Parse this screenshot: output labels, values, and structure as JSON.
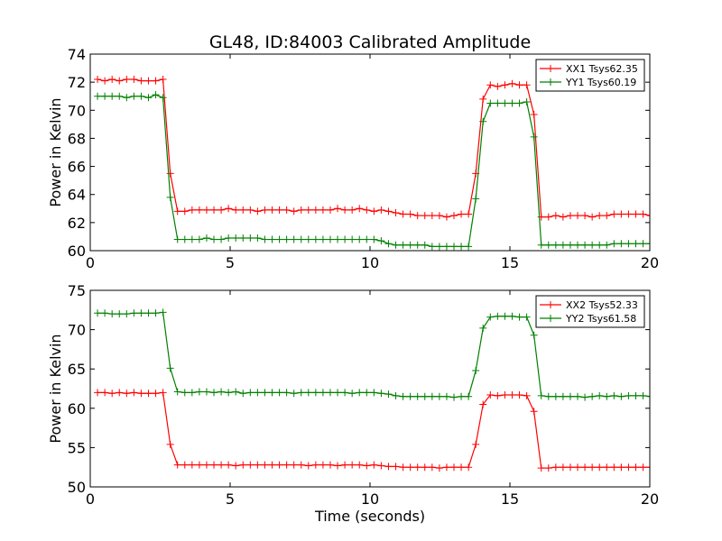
{
  "chart_data": [
    {
      "type": "line",
      "title": "GL48, ID:84003 Calibrated Amplitude",
      "xlabel": "",
      "ylabel": "Power in Kelvin",
      "xlim": [
        0,
        20
      ],
      "ylim": [
        60,
        74
      ],
      "xticks": [
        0,
        5,
        10,
        15,
        20
      ],
      "yticks": [
        60,
        62,
        64,
        66,
        68,
        70,
        72,
        74
      ],
      "xtick_labels": [
        "0",
        "5",
        "10",
        "15",
        "20"
      ],
      "ytick_labels": [
        "60",
        "62",
        "64",
        "66",
        "68",
        "70",
        "72",
        "74"
      ],
      "grid": false,
      "legend_position": "top-right",
      "x": [
        0.26,
        0.52,
        0.78,
        1.04,
        1.3,
        1.56,
        1.82,
        2.08,
        2.34,
        2.6,
        2.86,
        3.12,
        3.38,
        3.64,
        3.9,
        4.16,
        4.42,
        4.68,
        4.94,
        5.2,
        5.46,
        5.72,
        5.98,
        6.24,
        6.5,
        6.76,
        7.02,
        7.28,
        7.54,
        7.8,
        8.06,
        8.32,
        8.58,
        8.84,
        9.1,
        9.36,
        9.62,
        9.88,
        10.14,
        10.4,
        10.66,
        10.92,
        11.18,
        11.44,
        11.7,
        11.96,
        12.22,
        12.48,
        12.74,
        13.0,
        13.26,
        13.52,
        13.78,
        14.04,
        14.3,
        14.56,
        14.82,
        15.08,
        15.34,
        15.6,
        15.86,
        16.12,
        16.38,
        16.64,
        16.9,
        17.16,
        17.42,
        17.68,
        17.94,
        18.2,
        18.46,
        18.72,
        18.98,
        19.24,
        19.5,
        19.76,
        20.02
      ],
      "series": [
        {
          "name": "XX1 Tsys62.35",
          "color": "#ff0000",
          "values": [
            72.2,
            72.1,
            72.2,
            72.1,
            72.2,
            72.2,
            72.1,
            72.1,
            72.1,
            72.2,
            65.5,
            62.8,
            62.8,
            62.9,
            62.9,
            62.9,
            62.9,
            62.9,
            63.0,
            62.9,
            62.9,
            62.9,
            62.8,
            62.9,
            62.9,
            62.9,
            62.9,
            62.8,
            62.9,
            62.9,
            62.9,
            62.9,
            62.9,
            63.0,
            62.9,
            62.9,
            63.0,
            62.9,
            62.8,
            62.9,
            62.8,
            62.7,
            62.6,
            62.6,
            62.5,
            62.5,
            62.5,
            62.5,
            62.4,
            62.5,
            62.6,
            62.6,
            65.5,
            70.8,
            71.8,
            71.7,
            71.8,
            71.9,
            71.8,
            71.8,
            69.7,
            62.4,
            62.4,
            62.5,
            62.4,
            62.5,
            62.5,
            62.5,
            62.4,
            62.5,
            62.5,
            62.6,
            62.6,
            62.6,
            62.6,
            62.6,
            62.5
          ]
        },
        {
          "name": "YY1 Tsys60.19",
          "color": "#008000",
          "values": [
            71.0,
            71.0,
            71.0,
            71.0,
            70.9,
            71.0,
            71.0,
            70.9,
            71.1,
            70.9,
            63.8,
            60.8,
            60.8,
            60.8,
            60.8,
            60.9,
            60.8,
            60.8,
            60.9,
            60.9,
            60.9,
            60.9,
            60.9,
            60.8,
            60.8,
            60.8,
            60.8,
            60.8,
            60.8,
            60.8,
            60.8,
            60.8,
            60.8,
            60.8,
            60.8,
            60.8,
            60.8,
            60.8,
            60.8,
            60.7,
            60.5,
            60.4,
            60.4,
            60.4,
            60.4,
            60.4,
            60.3,
            60.3,
            60.3,
            60.3,
            60.3,
            60.3,
            63.7,
            69.2,
            70.5,
            70.5,
            70.5,
            70.5,
            70.5,
            70.6,
            68.1,
            60.4,
            60.4,
            60.4,
            60.4,
            60.4,
            60.4,
            60.4,
            60.4,
            60.4,
            60.4,
            60.5,
            60.5,
            60.5,
            60.5,
            60.5,
            60.5
          ]
        }
      ]
    },
    {
      "type": "line",
      "title": "",
      "xlabel": "Time (seconds)",
      "ylabel": "Power in Kelvin",
      "xlim": [
        0,
        20
      ],
      "ylim": [
        50,
        75
      ],
      "xticks": [
        0,
        5,
        10,
        15,
        20
      ],
      "yticks": [
        50,
        55,
        60,
        65,
        70,
        75
      ],
      "xtick_labels": [
        "0",
        "5",
        "10",
        "15",
        "20"
      ],
      "ytick_labels": [
        "50",
        "55",
        "60",
        "65",
        "70",
        "75"
      ],
      "grid": false,
      "legend_position": "top-right",
      "x": [
        0.26,
        0.52,
        0.78,
        1.04,
        1.3,
        1.56,
        1.82,
        2.08,
        2.34,
        2.6,
        2.86,
        3.12,
        3.38,
        3.64,
        3.9,
        4.16,
        4.42,
        4.68,
        4.94,
        5.2,
        5.46,
        5.72,
        5.98,
        6.24,
        6.5,
        6.76,
        7.02,
        7.28,
        7.54,
        7.8,
        8.06,
        8.32,
        8.58,
        8.84,
        9.1,
        9.36,
        9.62,
        9.88,
        10.14,
        10.4,
        10.66,
        10.92,
        11.18,
        11.44,
        11.7,
        11.96,
        12.22,
        12.48,
        12.74,
        13.0,
        13.26,
        13.52,
        13.78,
        14.04,
        14.3,
        14.56,
        14.82,
        15.08,
        15.34,
        15.6,
        15.86,
        16.12,
        16.38,
        16.64,
        16.9,
        17.16,
        17.42,
        17.68,
        17.94,
        18.2,
        18.46,
        18.72,
        18.98,
        19.24,
        19.5,
        19.76,
        20.02
      ],
      "series": [
        {
          "name": "XX2 Tsys52.33",
          "color": "#ff0000",
          "values": [
            62.0,
            62.0,
            61.9,
            62.0,
            61.9,
            62.0,
            61.9,
            61.9,
            61.9,
            62.0,
            55.4,
            52.8,
            52.8,
            52.8,
            52.8,
            52.8,
            52.8,
            52.8,
            52.8,
            52.7,
            52.8,
            52.8,
            52.8,
            52.8,
            52.8,
            52.8,
            52.8,
            52.8,
            52.8,
            52.7,
            52.8,
            52.8,
            52.8,
            52.7,
            52.8,
            52.8,
            52.8,
            52.7,
            52.8,
            52.7,
            52.6,
            52.6,
            52.5,
            52.5,
            52.5,
            52.5,
            52.5,
            52.4,
            52.5,
            52.5,
            52.5,
            52.5,
            55.4,
            60.5,
            61.7,
            61.6,
            61.7,
            61.7,
            61.7,
            61.6,
            59.6,
            52.4,
            52.4,
            52.5,
            52.5,
            52.5,
            52.5,
            52.5,
            52.5,
            52.5,
            52.5,
            52.5,
            52.5,
            52.5,
            52.5,
            52.5,
            52.5
          ]
        },
        {
          "name": "YY2 Tsys61.58",
          "color": "#008000",
          "values": [
            72.1,
            72.1,
            72.0,
            72.0,
            72.0,
            72.1,
            72.1,
            72.1,
            72.1,
            72.2,
            65.1,
            62.1,
            62.0,
            62.0,
            62.1,
            62.1,
            62.0,
            62.1,
            62.0,
            62.1,
            61.9,
            62.0,
            62.0,
            62.0,
            62.0,
            62.0,
            62.0,
            61.9,
            62.0,
            62.0,
            62.0,
            62.0,
            62.0,
            62.0,
            62.0,
            61.9,
            62.0,
            62.0,
            62.0,
            61.9,
            61.8,
            61.6,
            61.5,
            61.5,
            61.5,
            61.5,
            61.5,
            61.5,
            61.5,
            61.4,
            61.5,
            61.5,
            64.8,
            70.2,
            71.6,
            71.7,
            71.7,
            71.7,
            71.6,
            71.6,
            69.3,
            61.6,
            61.5,
            61.5,
            61.5,
            61.5,
            61.5,
            61.4,
            61.5,
            61.6,
            61.5,
            61.6,
            61.5,
            61.6,
            61.6,
            61.6,
            61.5
          ]
        }
      ]
    }
  ]
}
